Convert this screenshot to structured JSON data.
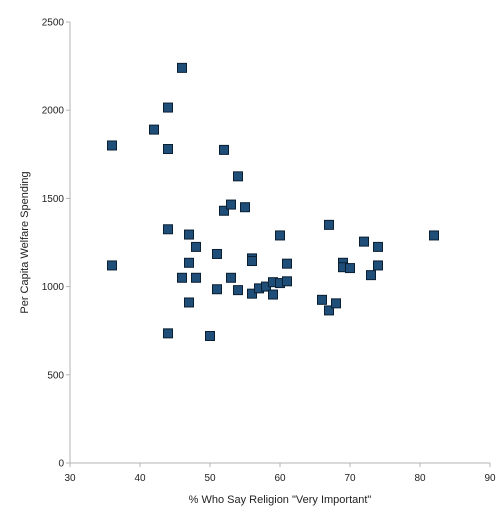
{
  "chart_data": {
    "type": "scatter",
    "title": "",
    "xlabel": "% Who Say Religion \"Very Important\"",
    "ylabel": "Per Capita Welfare Spending",
    "xlim": [
      30,
      90
    ],
    "ylim": [
      0,
      2500
    ],
    "x_ticks": [
      30,
      40,
      50,
      60,
      70,
      80,
      90
    ],
    "y_ticks": [
      0,
      500,
      1000,
      1500,
      2000,
      2500
    ],
    "grid": false,
    "legend": "none",
    "marker": "square",
    "marker_color": "#1f4e79",
    "marker_edge_color": "#0b1f33",
    "points": [
      {
        "x": 36,
        "y": 1800
      },
      {
        "x": 36,
        "y": 1120
      },
      {
        "x": 42,
        "y": 1890
      },
      {
        "x": 44,
        "y": 2015
      },
      {
        "x": 44,
        "y": 1780
      },
      {
        "x": 44,
        "y": 1325
      },
      {
        "x": 44,
        "y": 735
      },
      {
        "x": 46,
        "y": 2240
      },
      {
        "x": 46,
        "y": 1050
      },
      {
        "x": 47,
        "y": 1295
      },
      {
        "x": 47,
        "y": 1135
      },
      {
        "x": 47,
        "y": 910
      },
      {
        "x": 48,
        "y": 1225
      },
      {
        "x": 48,
        "y": 1050
      },
      {
        "x": 50,
        "y": 720
      },
      {
        "x": 51,
        "y": 1185
      },
      {
        "x": 51,
        "y": 985
      },
      {
        "x": 52,
        "y": 1775
      },
      {
        "x": 52,
        "y": 1430
      },
      {
        "x": 53,
        "y": 1465
      },
      {
        "x": 53,
        "y": 1050
      },
      {
        "x": 54,
        "y": 1625
      },
      {
        "x": 54,
        "y": 980
      },
      {
        "x": 55,
        "y": 1450
      },
      {
        "x": 56,
        "y": 1160
      },
      {
        "x": 56,
        "y": 1145
      },
      {
        "x": 56,
        "y": 960
      },
      {
        "x": 57,
        "y": 990
      },
      {
        "x": 58,
        "y": 1000
      },
      {
        "x": 59,
        "y": 1025
      },
      {
        "x": 59,
        "y": 955
      },
      {
        "x": 60,
        "y": 1290
      },
      {
        "x": 60,
        "y": 1020
      },
      {
        "x": 61,
        "y": 1130
      },
      {
        "x": 61,
        "y": 1030
      },
      {
        "x": 66,
        "y": 925
      },
      {
        "x": 67,
        "y": 1350
      },
      {
        "x": 67,
        "y": 865
      },
      {
        "x": 68,
        "y": 905
      },
      {
        "x": 69,
        "y": 1135
      },
      {
        "x": 69,
        "y": 1110
      },
      {
        "x": 70,
        "y": 1105
      },
      {
        "x": 72,
        "y": 1255
      },
      {
        "x": 73,
        "y": 1065
      },
      {
        "x": 74,
        "y": 1225
      },
      {
        "x": 74,
        "y": 1120
      },
      {
        "x": 82,
        "y": 1290
      }
    ]
  }
}
